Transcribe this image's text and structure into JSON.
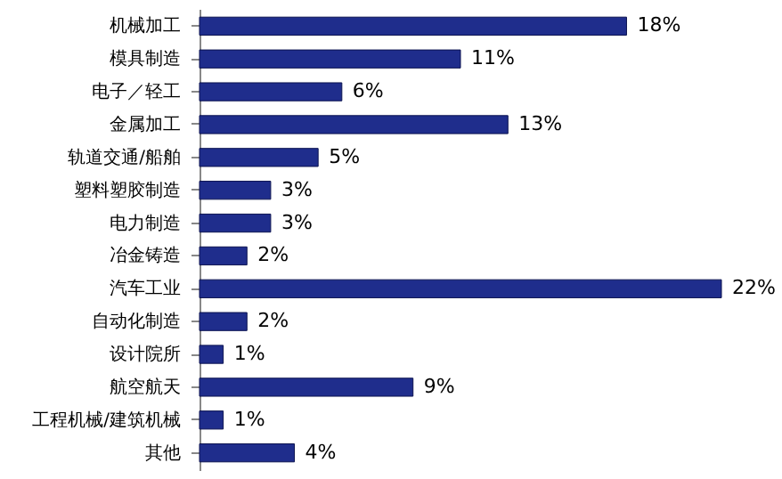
{
  "chart_data": {
    "type": "bar",
    "orientation": "horizontal",
    "categories": [
      "机械加工",
      "模具制造",
      "电子／轻工",
      "金属加工",
      "轨道交通/船舶",
      "塑料塑胶制造",
      "电力制造",
      "冶金铸造",
      "汽车工业",
      "自动化制造",
      "设计院所",
      "航空航天",
      "工程机械/建筑机械",
      "其他"
    ],
    "values": [
      18,
      11,
      6,
      13,
      5,
      3,
      3,
      2,
      22,
      2,
      1,
      9,
      1,
      4
    ],
    "value_labels": [
      "18%",
      "11%",
      "6%",
      "13%",
      "5%",
      "3%",
      "3%",
      "2%",
      "22%",
      "2%",
      "1%",
      "9%",
      "1%",
      "4%"
    ],
    "color": "#1f2d8c"
  }
}
